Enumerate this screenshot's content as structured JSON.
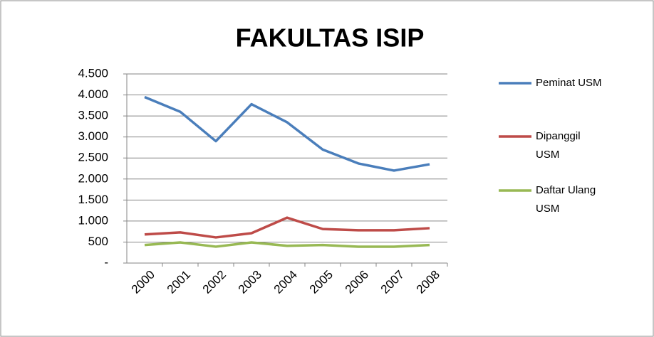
{
  "chart_data": {
    "type": "line",
    "title": "FAKULTAS ISIP",
    "categories": [
      "2000",
      "2001",
      "2002",
      "2003",
      "2004",
      "2005",
      "2006",
      "2007",
      "2008"
    ],
    "series": [
      {
        "name": "Peminat USM",
        "color": "#4a7ebb",
        "values": [
          3950,
          3600,
          2900,
          3780,
          3350,
          2700,
          2370,
          2200,
          2350
        ]
      },
      {
        "name": "Dipanggil USM",
        "color": "#be4b48",
        "values": [
          680,
          730,
          610,
          710,
          1080,
          810,
          780,
          780,
          830
        ]
      },
      {
        "name": "Daftar Ulang USM",
        "color": "#98b954",
        "values": [
          430,
          490,
          390,
          490,
          410,
          430,
          390,
          390,
          430
        ]
      }
    ],
    "ylim": [
      0,
      4500
    ],
    "yticks": [
      {
        "value": 0,
        "label": "-"
      },
      500,
      {
        "value": 1000,
        "label": "1.000"
      },
      {
        "value": 1500,
        "label": "1.500"
      },
      {
        "value": 2000,
        "label": "2.000"
      },
      {
        "value": 2500,
        "label": "2.500"
      },
      {
        "value": 3000,
        "label": "3.000"
      },
      {
        "value": 3500,
        "label": "3.500"
      },
      {
        "value": 4000,
        "label": "4.000"
      },
      {
        "value": 4500,
        "label": "4.500"
      }
    ],
    "grid": true,
    "legend": "right"
  }
}
